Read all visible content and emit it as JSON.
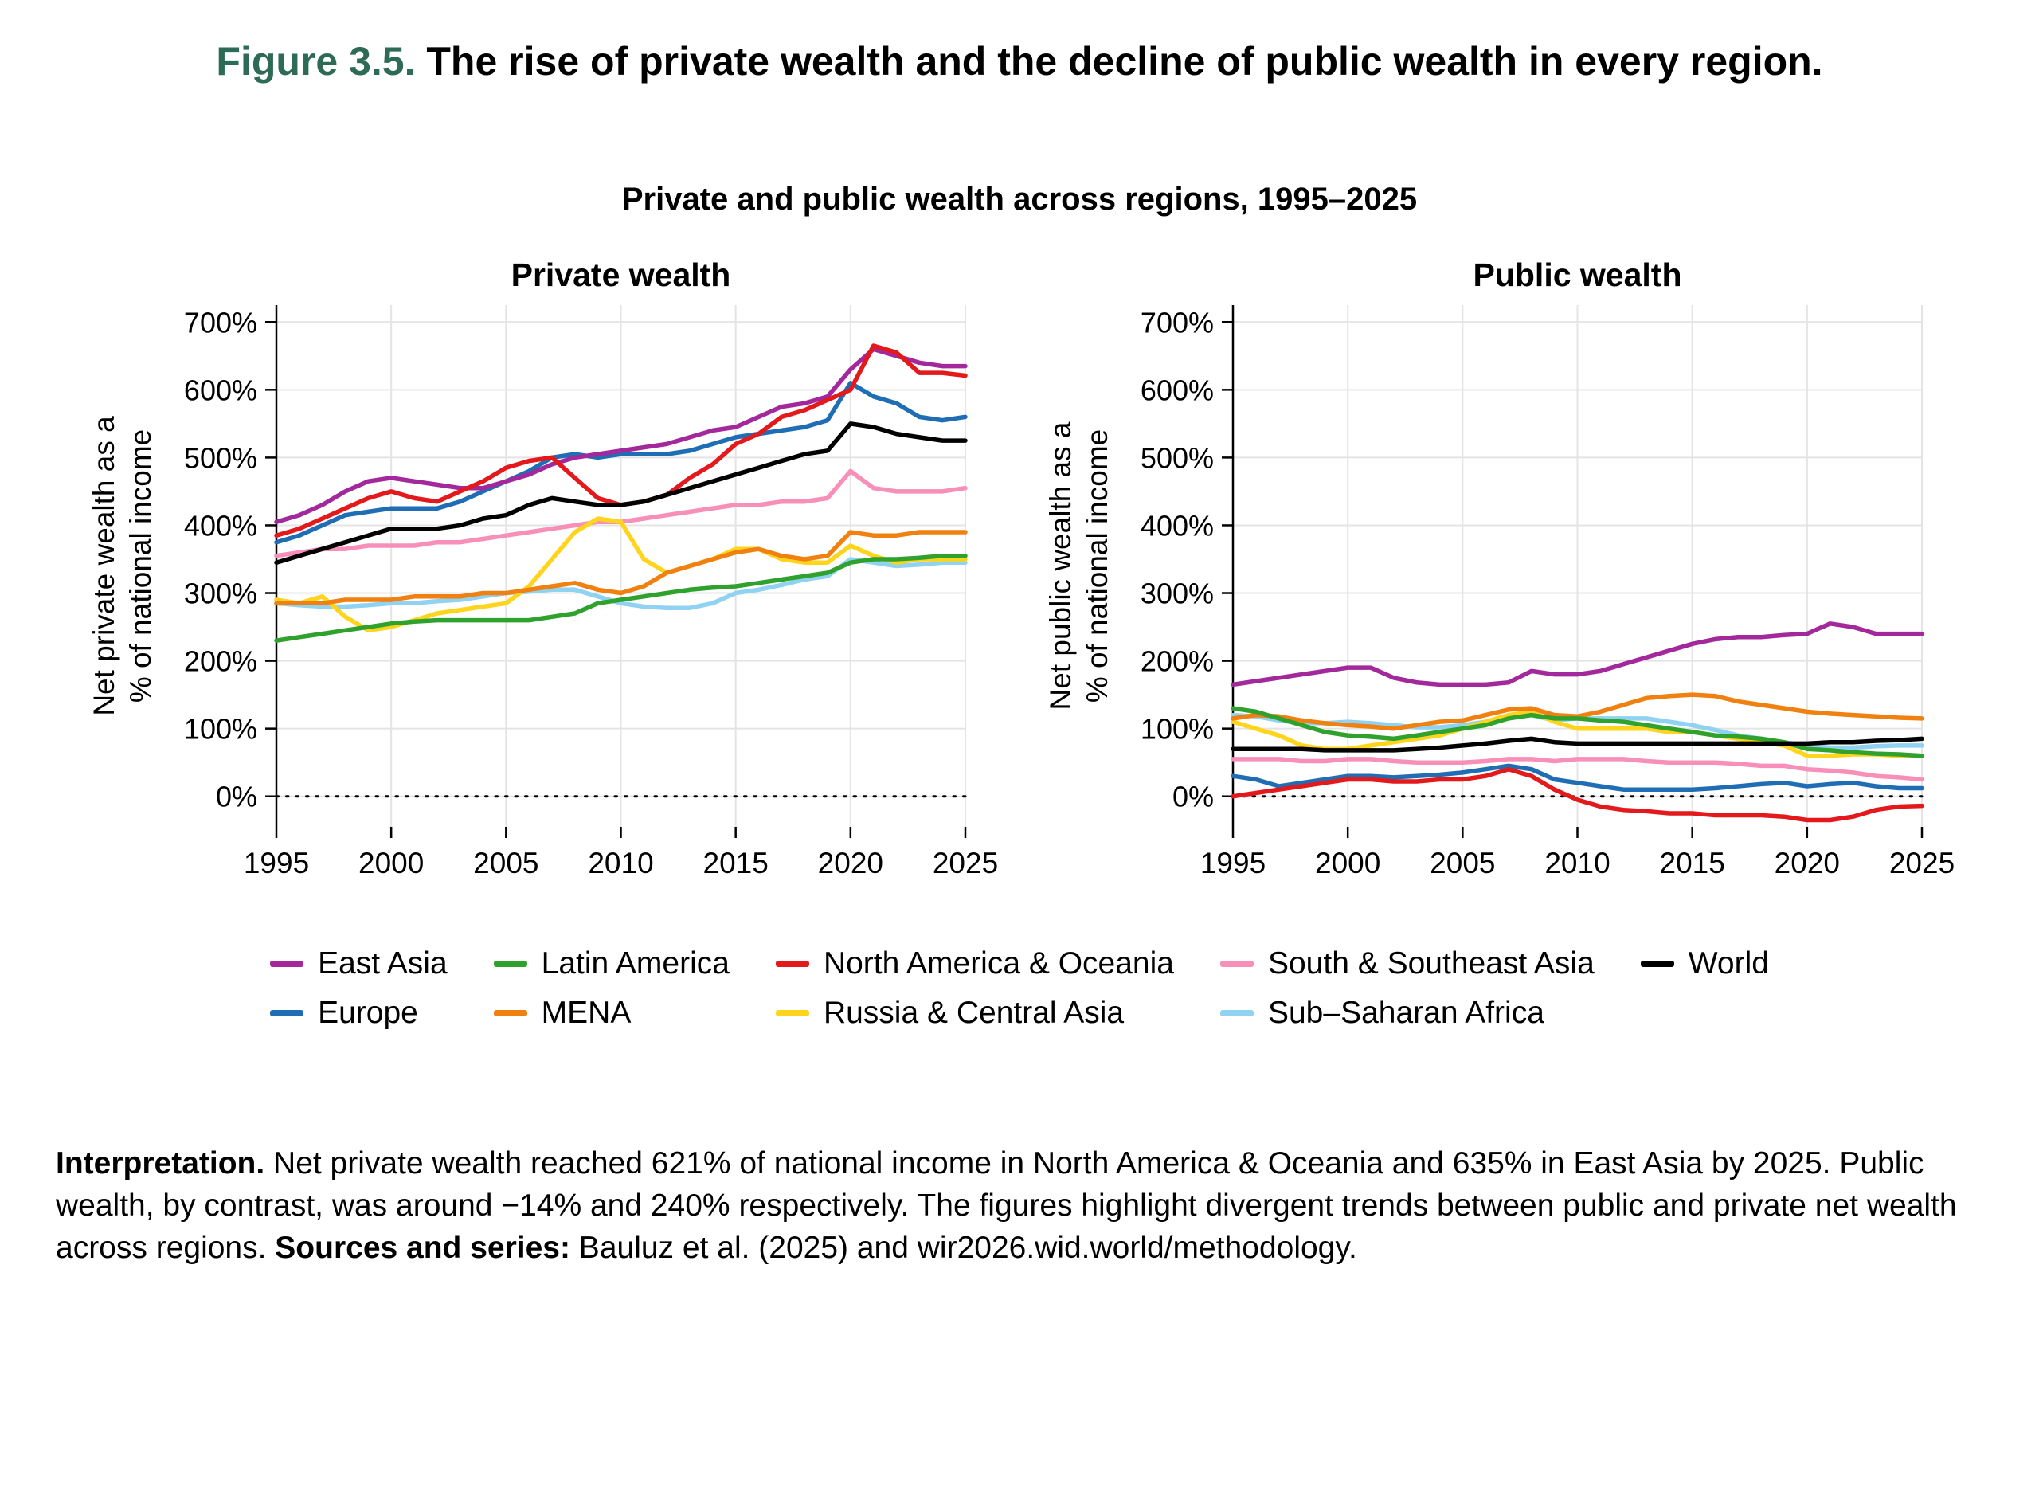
{
  "header": {
    "figure_label": "Figure 3.5.",
    "title": " The rise of private wealth and the decline of public wealth in every region.",
    "subtitle": "Private and public wealth across regions, 1995–2025"
  },
  "legend": {
    "items": [
      {
        "label": "East Asia",
        "color": "#A3289B"
      },
      {
        "label": "Latin America",
        "color": "#2FA12D"
      },
      {
        "label": "North America & Oceania",
        "color": "#E3191C"
      },
      {
        "label": "South & Southeast Asia",
        "color": "#F78FB9"
      },
      {
        "label": "World",
        "color": "#000000"
      },
      {
        "label": "Europe",
        "color": "#1F6EB5"
      },
      {
        "label": "MENA",
        "color": "#F0800F"
      },
      {
        "label": "Russia & Central Asia",
        "color": "#FFD41D"
      },
      {
        "label": "Sub–Saharan Africa",
        "color": "#8FD2F2"
      }
    ]
  },
  "interpretation": {
    "label": "Interpretation.",
    "text1": " Net private wealth reached 621% of national income in North America & Oceania and 635% in East Asia by 2025. Public wealth, by contrast, was around −14% and 240% respectively. The figures highlight divergent trends between public and private net wealth across regions. ",
    "sources_label": "Sources and series:",
    "text2": " Bauluz et al. (2025) and wir2026.wid.world/methodology."
  },
  "chart_data": [
    {
      "type": "line",
      "title": "Private wealth",
      "ylabel_lines": [
        "Net private wealth as a",
        "% of national income"
      ],
      "years": [
        1995,
        1996,
        1997,
        1998,
        1999,
        2000,
        2001,
        2002,
        2003,
        2004,
        2005,
        2006,
        2007,
        2008,
        2009,
        2010,
        2011,
        2012,
        2013,
        2014,
        2015,
        2016,
        2017,
        2018,
        2019,
        2020,
        2021,
        2022,
        2023,
        2024,
        2025
      ],
      "xlim": [
        1995,
        2025
      ],
      "ylim": [
        -45,
        725
      ],
      "xticks": [
        1995,
        2000,
        2005,
        2010,
        2015,
        2020,
        2025
      ],
      "xtick_labels": [
        "1995",
        "2000",
        "2005",
        "2010",
        "2015",
        "2020",
        "2025"
      ],
      "yticks": [
        0,
        100,
        200,
        300,
        400,
        500,
        600,
        700
      ],
      "ytick_labels": [
        "0%",
        "100%",
        "200%",
        "300%",
        "400%",
        "500%",
        "600%",
        "700%"
      ],
      "grid": true,
      "series": [
        {
          "name": "Sub–Saharan Africa",
          "color": "#8FD2F2",
          "values": [
            285,
            282,
            280,
            280,
            282,
            285,
            285,
            288,
            290,
            295,
            300,
            302,
            305,
            305,
            295,
            285,
            280,
            278,
            278,
            285,
            300,
            305,
            312,
            320,
            325,
            350,
            345,
            340,
            342,
            345,
            345
          ]
        },
        {
          "name": "South & Southeast Asia",
          "color": "#F78FB9",
          "values": [
            355,
            360,
            365,
            365,
            370,
            370,
            370,
            375,
            375,
            380,
            385,
            390,
            395,
            400,
            405,
            405,
            410,
            415,
            420,
            425,
            430,
            430,
            435,
            435,
            440,
            480,
            455,
            450,
            450,
            450,
            455
          ]
        },
        {
          "name": "Russia & Central Asia",
          "color": "#FFD41D",
          "values": [
            290,
            285,
            295,
            265,
            245,
            250,
            260,
            270,
            275,
            280,
            285,
            310,
            350,
            390,
            410,
            405,
            350,
            330,
            340,
            350,
            365,
            365,
            350,
            345,
            345,
            370,
            355,
            345,
            350,
            350,
            350
          ]
        },
        {
          "name": "MENA",
          "color": "#F0800F",
          "values": [
            285,
            285,
            285,
            290,
            290,
            290,
            295,
            295,
            295,
            300,
            300,
            305,
            310,
            315,
            305,
            300,
            310,
            330,
            340,
            350,
            360,
            365,
            355,
            350,
            355,
            390,
            385,
            385,
            390,
            390,
            390
          ]
        },
        {
          "name": "Latin America",
          "color": "#2FA12D",
          "values": [
            230,
            235,
            240,
            245,
            250,
            255,
            258,
            260,
            260,
            260,
            260,
            260,
            265,
            270,
            285,
            290,
            295,
            300,
            305,
            308,
            310,
            315,
            320,
            325,
            330,
            345,
            350,
            350,
            352,
            355,
            355
          ]
        },
        {
          "name": "Europe",
          "color": "#1F6EB5",
          "values": [
            375,
            385,
            400,
            415,
            420,
            425,
            425,
            425,
            435,
            450,
            465,
            480,
            500,
            505,
            500,
            505,
            505,
            505,
            510,
            520,
            530,
            535,
            540,
            545,
            555,
            610,
            590,
            580,
            560,
            555,
            560
          ]
        },
        {
          "name": "East Asia",
          "color": "#A3289B",
          "values": [
            405,
            415,
            430,
            450,
            465,
            470,
            465,
            460,
            455,
            455,
            465,
            475,
            490,
            500,
            505,
            510,
            515,
            520,
            530,
            540,
            545,
            560,
            575,
            580,
            590,
            630,
            660,
            650,
            640,
            635,
            635
          ]
        },
        {
          "name": "North America & Oceania",
          "color": "#E3191C",
          "values": [
            385,
            395,
            410,
            425,
            440,
            450,
            440,
            435,
            450,
            465,
            485,
            495,
            500,
            470,
            440,
            430,
            435,
            445,
            470,
            490,
            520,
            535,
            560,
            570,
            585,
            600,
            665,
            655,
            625,
            625,
            621
          ]
        },
        {
          "name": "World",
          "color": "#000000",
          "values": [
            345,
            355,
            365,
            375,
            385,
            395,
            395,
            395,
            400,
            410,
            415,
            430,
            440,
            435,
            430,
            430,
            435,
            445,
            455,
            465,
            475,
            485,
            495,
            505,
            510,
            550,
            545,
            535,
            530,
            525,
            525
          ]
        }
      ]
    },
    {
      "type": "line",
      "title": "Public wealth",
      "ylabel_lines": [
        "Net public wealth as a",
        "% of national income"
      ],
      "years": [
        1995,
        1996,
        1997,
        1998,
        1999,
        2000,
        2001,
        2002,
        2003,
        2004,
        2005,
        2006,
        2007,
        2008,
        2009,
        2010,
        2011,
        2012,
        2013,
        2014,
        2015,
        2016,
        2017,
        2018,
        2019,
        2020,
        2021,
        2022,
        2023,
        2024,
        2025
      ],
      "xlim": [
        1995,
        2025
      ],
      "ylim": [
        -45,
        725
      ],
      "xticks": [
        1995,
        2000,
        2005,
        2010,
        2015,
        2020,
        2025
      ],
      "xtick_labels": [
        "1995",
        "2000",
        "2005",
        "2010",
        "2015",
        "2020",
        "2025"
      ],
      "yticks": [
        0,
        100,
        200,
        300,
        400,
        500,
        600,
        700
      ],
      "ytick_labels": [
        "0%",
        "100%",
        "200%",
        "300%",
        "400%",
        "500%",
        "600%",
        "700%"
      ],
      "grid": true,
      "series": [
        {
          "name": "Sub–Saharan Africa",
          "color": "#8FD2F2",
          "values": [
            120,
            118,
            112,
            108,
            108,
            110,
            108,
            105,
            102,
            102,
            105,
            110,
            118,
            120,
            112,
            115,
            115,
            115,
            115,
            110,
            105,
            98,
            90,
            85,
            80,
            75,
            72,
            72,
            74,
            75,
            75
          ]
        },
        {
          "name": "South & Southeast Asia",
          "color": "#F78FB9",
          "values": [
            55,
            55,
            55,
            52,
            52,
            55,
            55,
            52,
            50,
            50,
            50,
            52,
            55,
            55,
            52,
            55,
            55,
            55,
            52,
            50,
            50,
            50,
            48,
            45,
            45,
            40,
            38,
            35,
            30,
            28,
            25
          ]
        },
        {
          "name": "Russia & Central Asia",
          "color": "#FFD41D",
          "values": [
            110,
            100,
            90,
            75,
            70,
            70,
            75,
            80,
            85,
            90,
            100,
            110,
            120,
            125,
            110,
            100,
            100,
            100,
            100,
            95,
            95,
            90,
            85,
            80,
            75,
            60,
            60,
            62,
            62,
            60,
            60
          ]
        },
        {
          "name": "MENA",
          "color": "#F0800F",
          "values": [
            115,
            120,
            118,
            112,
            108,
            105,
            103,
            100,
            105,
            110,
            112,
            120,
            128,
            130,
            120,
            118,
            125,
            135,
            145,
            148,
            150,
            148,
            140,
            135,
            130,
            125,
            122,
            120,
            118,
            116,
            115
          ]
        },
        {
          "name": "Latin America",
          "color": "#2FA12D",
          "values": [
            130,
            125,
            115,
            105,
            95,
            90,
            88,
            85,
            90,
            95,
            100,
            105,
            115,
            120,
            115,
            115,
            112,
            110,
            105,
            100,
            95,
            90,
            88,
            85,
            80,
            70,
            68,
            65,
            63,
            62,
            60
          ]
        },
        {
          "name": "Europe",
          "color": "#1F6EB5",
          "values": [
            30,
            25,
            15,
            20,
            25,
            30,
            30,
            28,
            30,
            32,
            35,
            40,
            45,
            40,
            25,
            20,
            15,
            10,
            10,
            10,
            10,
            12,
            15,
            18,
            20,
            15,
            18,
            20,
            15,
            12,
            12
          ]
        },
        {
          "name": "East Asia",
          "color": "#A3289B",
          "values": [
            165,
            170,
            175,
            180,
            185,
            190,
            190,
            175,
            168,
            165,
            165,
            165,
            168,
            185,
            180,
            180,
            185,
            195,
            205,
            215,
            225,
            232,
            235,
            235,
            238,
            240,
            255,
            250,
            240,
            240,
            240
          ]
        },
        {
          "name": "North America & Oceania",
          "color": "#E3191C",
          "values": [
            0,
            5,
            10,
            15,
            20,
            25,
            25,
            22,
            22,
            25,
            25,
            30,
            40,
            30,
            10,
            -5,
            -15,
            -20,
            -22,
            -25,
            -25,
            -28,
            -28,
            -28,
            -30,
            -35,
            -35,
            -30,
            -20,
            -15,
            -14
          ]
        },
        {
          "name": "World",
          "color": "#000000",
          "values": [
            70,
            70,
            70,
            70,
            68,
            68,
            68,
            68,
            70,
            72,
            75,
            78,
            82,
            85,
            80,
            78,
            78,
            78,
            78,
            78,
            78,
            78,
            78,
            78,
            78,
            78,
            80,
            80,
            82,
            83,
            85
          ]
        }
      ]
    }
  ]
}
